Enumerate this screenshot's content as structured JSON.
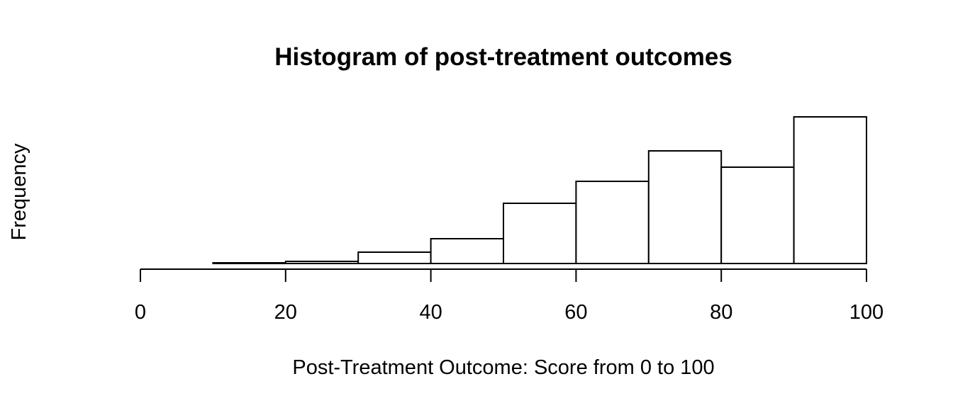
{
  "chart_data": {
    "type": "bar",
    "title": "Histogram of post-treatment outcomes",
    "xlabel": "Post-Treatment Outcome: Score from 0 to 100",
    "ylabel": "Frequency",
    "bins": [
      {
        "start": 0,
        "end": 10,
        "count": 0
      },
      {
        "start": 10,
        "end": 20,
        "count": 1
      },
      {
        "start": 20,
        "end": 30,
        "count": 3
      },
      {
        "start": 30,
        "end": 40,
        "count": 16
      },
      {
        "start": 40,
        "end": 50,
        "count": 35
      },
      {
        "start": 50,
        "end": 60,
        "count": 85
      },
      {
        "start": 60,
        "end": 70,
        "count": 116
      },
      {
        "start": 70,
        "end": 80,
        "count": 159
      },
      {
        "start": 80,
        "end": 90,
        "count": 136
      },
      {
        "start": 90,
        "end": 100,
        "count": 207
      }
    ],
    "xlim": [
      0,
      100
    ],
    "ylim": [
      0,
      207
    ],
    "x_ticks": [
      "0",
      "20",
      "40",
      "60",
      "80",
      "100"
    ],
    "y_axis_shown": false,
    "grid": false,
    "legend": "none",
    "colors": {
      "bar_fill": "#ffffff",
      "bar_stroke": "#000000"
    }
  }
}
